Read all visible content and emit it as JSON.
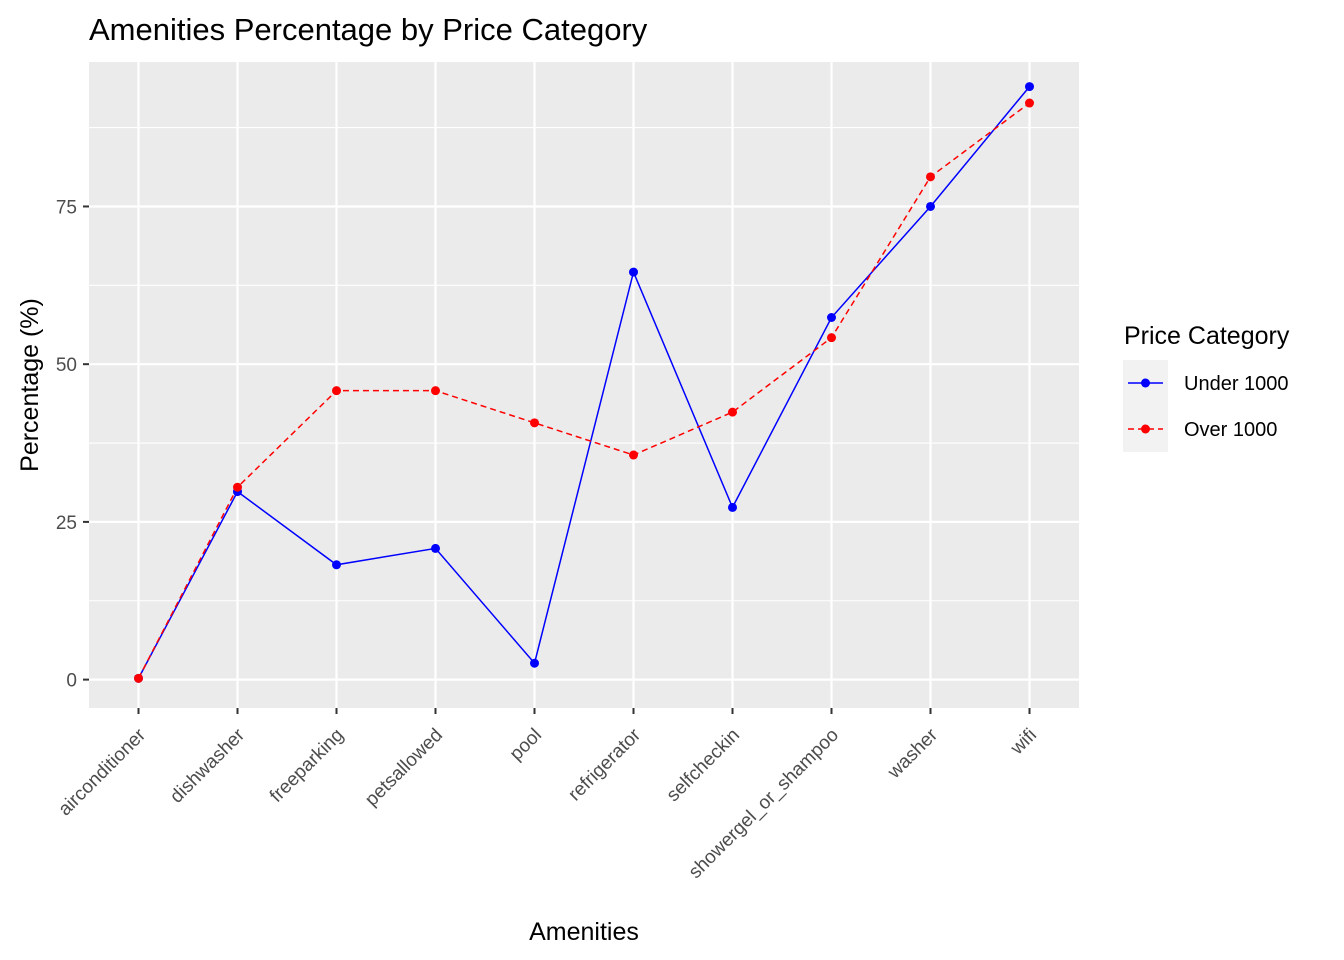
{
  "chart_data": {
    "type": "line",
    "title": "Amenities Percentage by Price Category",
    "xlabel": "Amenities",
    "ylabel": "Percentage (%)",
    "categories": [
      "airconditioner",
      "dishwasher",
      "freeparking",
      "petsallowed",
      "pool",
      "refrigerator",
      "selfcheckin",
      "showergel_or_shampoo",
      "washer",
      "wifi"
    ],
    "ylim": [
      -4.5,
      97.9
    ],
    "yticks": [
      0,
      25,
      50,
      75
    ],
    "grid": true,
    "legend": {
      "title": "Price Category",
      "placement": "right"
    },
    "series": [
      {
        "name": "Under 1000",
        "color": "#0000ff",
        "line_style": "solid",
        "values": [
          0.2,
          29.8,
          18.2,
          20.8,
          2.6,
          64.6,
          27.3,
          57.4,
          75.0,
          94.0
        ]
      },
      {
        "name": "Over 1000",
        "color": "#ff0000",
        "line_style": "dashed",
        "values": [
          0.2,
          30.5,
          45.8,
          45.8,
          40.7,
          35.6,
          42.4,
          54.2,
          79.7,
          91.4
        ]
      }
    ]
  }
}
